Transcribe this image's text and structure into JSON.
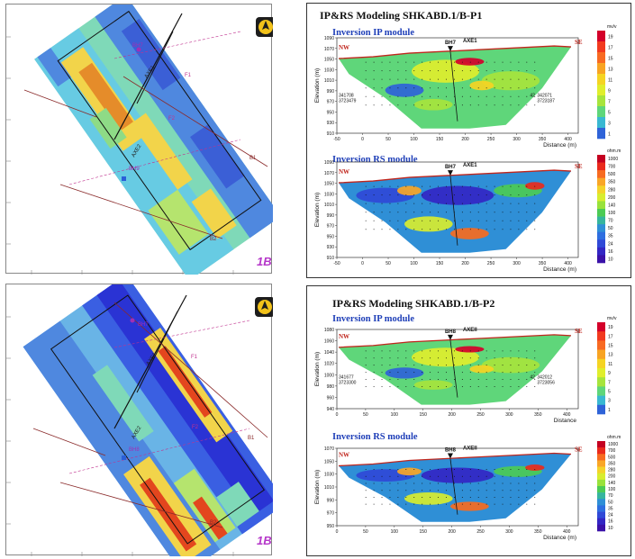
{
  "maps": [
    {
      "label": "1B",
      "features": {
        "bh": "BH7",
        "bh2": "BH9",
        "axes": [
          "AXE1",
          "AXE2"
        ],
        "faults": [
          "F1",
          "F2"
        ],
        "profiles": [
          "B1",
          "B2"
        ]
      }
    },
    {
      "label": "1B",
      "features": {
        "bh": "BH7",
        "bh2": "BH8",
        "axes": [
          "AXE1",
          "AXE2"
        ],
        "faults": [
          "F1",
          "F2"
        ],
        "profiles": [
          "B1",
          "B2"
        ]
      }
    }
  ],
  "sections": [
    {
      "title": "IP&RS Modeling SHKABD.1/B-P1",
      "ip": {
        "module": "Inversion IP module",
        "ylabel": "Elevation (m)",
        "xlabel": "Distance (m)",
        "ymin": 910,
        "ymax": 1090,
        "yticks": [
          "1090",
          "1070",
          "1050",
          "1030",
          "1010",
          "990",
          "970",
          "950",
          "930",
          "910"
        ],
        "xticks": [
          "-50",
          "0",
          "50",
          "100",
          "150",
          "200",
          "250",
          "300",
          "350",
          "400"
        ],
        "nw": "NW",
        "se": "SE",
        "bh": "BH7",
        "axe": "AXE1",
        "coordLeft": [
          "341708",
          "3723479"
        ],
        "coordRight": [
          "342071",
          "3723187"
        ],
        "rightIndex": "42",
        "unit": "mv/v",
        "scale": [
          "19",
          "17",
          "15",
          "13",
          "11",
          "9",
          "7",
          "5",
          "3",
          "1"
        ],
        "colors": [
          "#d4002a",
          "#f23a1f",
          "#f86a22",
          "#f8a423",
          "#f5d423",
          "#e0ee2c",
          "#a7e43c",
          "#5fd67a",
          "#39b8d2",
          "#2f63d8"
        ]
      },
      "rs": {
        "module": "Inversion RS module",
        "ylabel": "Elevation (m)",
        "xlabel": "Distance (m)",
        "ymin": 910,
        "ymax": 1090,
        "yticks": [
          "1090",
          "1070",
          "1050",
          "1030",
          "1010",
          "990",
          "970",
          "950",
          "930",
          "910"
        ],
        "xticks": [
          "-50",
          "0",
          "50",
          "100",
          "150",
          "200",
          "250",
          "300",
          "350",
          "400"
        ],
        "nw": "NW",
        "se": "SE",
        "bh": "BH7",
        "axe": "AXE1",
        "unit": "ohm.m",
        "scale": [
          "1000",
          "700",
          "500",
          "350",
          "280",
          "200",
          "140",
          "100",
          "70",
          "50",
          "35",
          "24",
          "16",
          "10"
        ],
        "colors": [
          "#c40020",
          "#ea2a1c",
          "#f76b20",
          "#f9a627",
          "#f4d32a",
          "#d8ed2f",
          "#99e23b",
          "#4ccb55",
          "#36b59e",
          "#2f8fd6",
          "#2e6ee0",
          "#3049d7",
          "#3326c4",
          "#3a11a8"
        ]
      }
    },
    {
      "title": "IP&RS Modeling SHKABD.1/B-P2",
      "ip": {
        "module": "Inversion IP module",
        "ylabel": "Elevation (m)",
        "xlabel": "Distance",
        "ymin": 940,
        "ymax": 1080,
        "yticks": [
          "1080",
          "1060",
          "1040",
          "1020",
          "1000",
          "980",
          "960",
          "940"
        ],
        "xticks": [
          "0",
          "50",
          "100",
          "150",
          "200",
          "250",
          "300",
          "350",
          "400"
        ],
        "nw": "NW",
        "se": "SE",
        "bh": "BH8",
        "axe": "AXEII",
        "coordLeft": [
          "341677",
          "3723300"
        ],
        "coordRight": [
          "342012",
          "3723056"
        ],
        "rightIndex": "42",
        "unit": "mv/v",
        "scale": [
          "19",
          "17",
          "15",
          "13",
          "11",
          "9",
          "7",
          "5",
          "3",
          "1"
        ],
        "colors": [
          "#d4002a",
          "#f23a1f",
          "#f86a22",
          "#f8a423",
          "#f5d423",
          "#e0ee2c",
          "#a7e43c",
          "#5fd67a",
          "#39b8d2",
          "#2f63d8"
        ]
      },
      "rs": {
        "module": "Inversion RS module",
        "ylabel": "Elevation (m)",
        "xlabel": "Distance (m)",
        "ymin": 950,
        "ymax": 1070,
        "yticks": [
          "1070",
          "1050",
          "1030",
          "1010",
          "990",
          "970",
          "950"
        ],
        "xticks": [
          "0",
          "50",
          "100",
          "150",
          "200",
          "250",
          "300",
          "350",
          "400"
        ],
        "nw": "NW",
        "se": "SE",
        "bh": "BH8",
        "axe": "AXEII",
        "unit": "ohm.m",
        "scale": [
          "1000",
          "700",
          "500",
          "350",
          "280",
          "200",
          "140",
          "100",
          "70",
          "50",
          "35",
          "24",
          "16",
          "10"
        ],
        "colors": [
          "#c40020",
          "#ea2a1c",
          "#f76b20",
          "#f9a627",
          "#f4d32a",
          "#d8ed2f",
          "#99e23b",
          "#4ccb55",
          "#36b59e",
          "#2f8fd6",
          "#2e6ee0",
          "#3049d7",
          "#3326c4",
          "#3a11a8"
        ]
      }
    }
  ],
  "chart_data": [
    {
      "type": "heatmap",
      "title": "IP&RS Modeling SHKABD.1/B-P1 — Inversion IP module",
      "xlabel": "Distance (m)",
      "ylabel": "Elevation (m)",
      "xlim": [
        -50,
        420
      ],
      "ylim": [
        910,
        1090
      ],
      "colorbar_unit": "mv/v",
      "colorbar_ticks": [
        1,
        3,
        5,
        7,
        9,
        11,
        13,
        15,
        17,
        19
      ]
    },
    {
      "type": "heatmap",
      "title": "IP&RS Modeling SHKABD.1/B-P1 — Inversion RS module",
      "xlabel": "Distance (m)",
      "ylabel": "Elevation (m)",
      "xlim": [
        -50,
        420
      ],
      "ylim": [
        910,
        1090
      ],
      "colorbar_unit": "ohm.m",
      "colorbar_ticks": [
        10,
        16,
        24,
        35,
        50,
        70,
        100,
        140,
        200,
        280,
        350,
        500,
        700,
        1000
      ]
    },
    {
      "type": "heatmap",
      "title": "IP&RS Modeling SHKABD.1/B-P2 — Inversion IP module",
      "xlabel": "Distance",
      "ylabel": "Elevation (m)",
      "xlim": [
        0,
        420
      ],
      "ylim": [
        940,
        1080
      ],
      "colorbar_unit": "mv/v",
      "colorbar_ticks": [
        1,
        3,
        5,
        7,
        9,
        11,
        13,
        15,
        17,
        19
      ]
    },
    {
      "type": "heatmap",
      "title": "IP&RS Modeling SHKABD.1/B-P2 — Inversion RS module",
      "xlabel": "Distance (m)",
      "ylabel": "Elevation (m)",
      "xlim": [
        0,
        420
      ],
      "ylim": [
        950,
        1070
      ],
      "colorbar_unit": "ohm.m",
      "colorbar_ticks": [
        10,
        16,
        24,
        35,
        50,
        70,
        100,
        140,
        200,
        280,
        350,
        500,
        700,
        1000
      ]
    }
  ]
}
